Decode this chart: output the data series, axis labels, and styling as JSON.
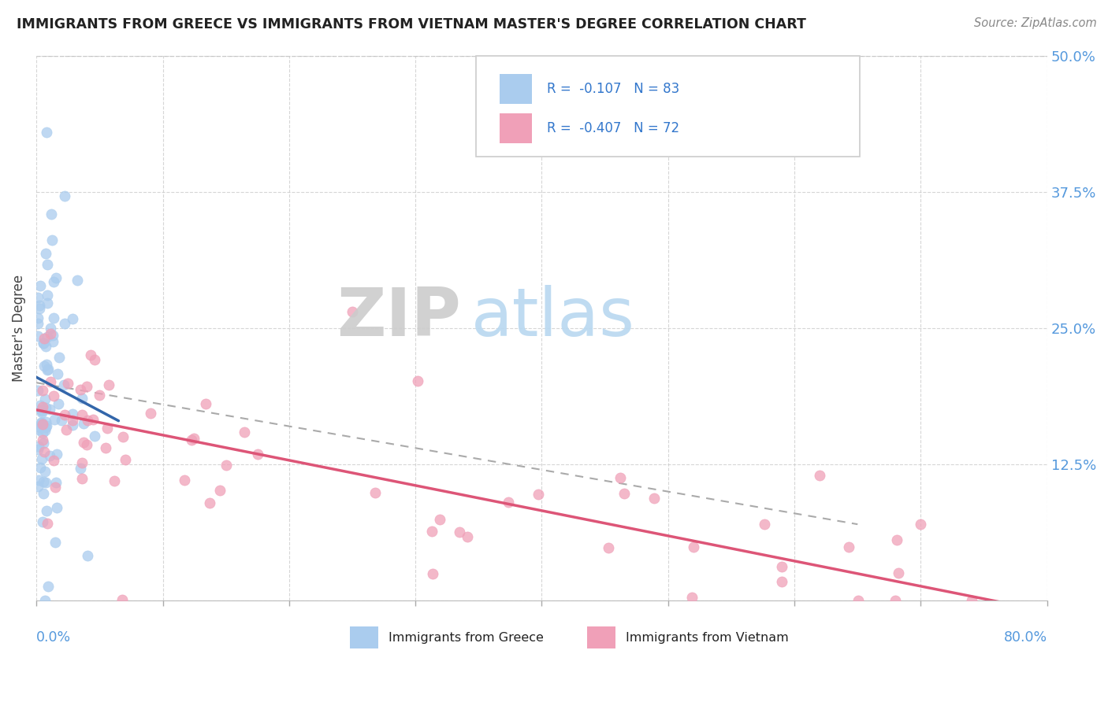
{
  "title": "IMMIGRANTS FROM GREECE VS IMMIGRANTS FROM VIETNAM MASTER'S DEGREE CORRELATION CHART",
  "source": "Source: ZipAtlas.com",
  "ylabel": "Master's Degree",
  "yticks": [
    0.0,
    0.125,
    0.25,
    0.375,
    0.5
  ],
  "ytick_labels": [
    "",
    "12.5%",
    "25.0%",
    "37.5%",
    "50.0%"
  ],
  "watermark_zip": "ZIP",
  "watermark_atlas": "atlas",
  "legend_greece": "R =  -0.107   N = 83",
  "legend_vietnam": "R =  -0.407   N = 72",
  "legend_label_greece": "Immigrants from Greece",
  "legend_label_vietnam": "Immigrants from Vietnam",
  "color_greece": "#aaccee",
  "color_vietnam": "#f0a0b8",
  "color_greece_line": "#3366aa",
  "color_vietnam_line": "#dd5577",
  "color_dashed": "#aaaaaa",
  "background_color": "#ffffff",
  "xlim": [
    0.0,
    0.8
  ],
  "ylim": [
    0.0,
    0.5
  ],
  "n_greece": 83,
  "n_vietnam": 72,
  "greece_trend_x": [
    0.0,
    0.065
  ],
  "greece_trend_y": [
    0.205,
    0.165
  ],
  "vietnam_trend_x": [
    0.0,
    0.8
  ],
  "vietnam_trend_y": [
    0.175,
    -0.01
  ],
  "dashed_trend_x": [
    0.0,
    0.65
  ],
  "dashed_trend_y": [
    0.2,
    0.07
  ]
}
